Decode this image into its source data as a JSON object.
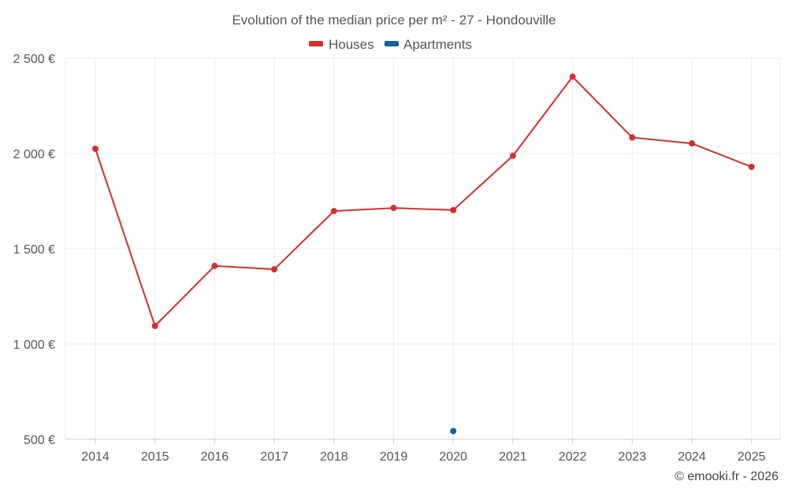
{
  "chart_data": {
    "type": "line",
    "title": "Evolution of the median price per m² - 27 - Hondouville",
    "xlabel": "",
    "ylabel": "",
    "categories": [
      "2014",
      "2015",
      "2016",
      "2017",
      "2018",
      "2019",
      "2020",
      "2021",
      "2022",
      "2023",
      "2024",
      "2025"
    ],
    "y_ticks": [
      500,
      1000,
      1500,
      2000,
      2500
    ],
    "y_tick_labels": [
      "500 €",
      "1 000 €",
      "1 500 €",
      "2 000 €",
      "2 500 €"
    ],
    "ylim": [
      500,
      2500
    ],
    "grid": true,
    "legend_position": "top-center",
    "series": [
      {
        "name": "Houses",
        "color": "#d32f2f",
        "values": [
          2025,
          1095,
          1410,
          1392,
          1698,
          1714,
          1703,
          1988,
          2403,
          2084,
          2053,
          1930
        ]
      },
      {
        "name": "Apartments",
        "color": "#0d6696",
        "values": [
          null,
          null,
          null,
          null,
          null,
          null,
          543,
          null,
          null,
          null,
          null,
          null
        ]
      }
    ]
  },
  "credit": "© emooki.fr - 2026"
}
